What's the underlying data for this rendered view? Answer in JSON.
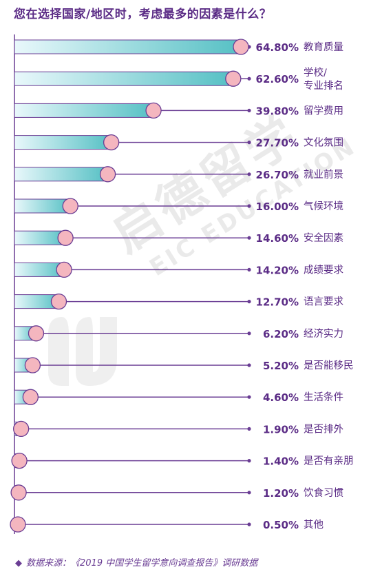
{
  "title": "您在选择国家/地区时，考虑最多的因素是什么？",
  "footer": "数据来源：《2019 中国学生留学意向调查报告》调研数据",
  "watermark": {
    "cn": "启德留学",
    "en": "EIC EDUCATION"
  },
  "colors": {
    "title": "#5b2c86",
    "line": "#6a3d94",
    "bar_fill_start": "#e9f8fb",
    "bar_fill_end": "#55c0c4",
    "bar_border": "#6a3d94",
    "dot_fill": "#f4b6bf",
    "dot_border": "#6a3d94",
    "value_text": "#5b2c86",
    "label_text": "#5b2c86"
  },
  "chart_data": {
    "type": "bar",
    "orientation": "horizontal",
    "categories": [
      "教育质量",
      "学校/\n专业排名",
      "留学费用",
      "文化氛围",
      "就业前景",
      "气候环境",
      "安全因素",
      "成绩要求",
      "语言要求",
      "经济实力",
      "是否能移民",
      "生活条件",
      "是否排外",
      "是否有亲朋",
      "饮食习惯",
      "其他"
    ],
    "values": [
      64.8,
      62.6,
      39.8,
      27.7,
      26.7,
      16.0,
      14.6,
      14.2,
      12.7,
      6.2,
      5.2,
      4.6,
      1.9,
      1.4,
      1.2,
      0.5
    ],
    "value_labels": [
      "64.80%",
      "62.60%",
      "39.80%",
      "27.70%",
      "26.70%",
      "16.00%",
      "14.60%",
      "14.20%",
      "12.70%",
      "6.20%",
      "5.20%",
      "4.60%",
      "1.90%",
      "1.40%",
      "1.20%",
      "0.50%"
    ],
    "xlim": [
      0,
      64.8
    ],
    "grid": false,
    "legend": "none"
  }
}
